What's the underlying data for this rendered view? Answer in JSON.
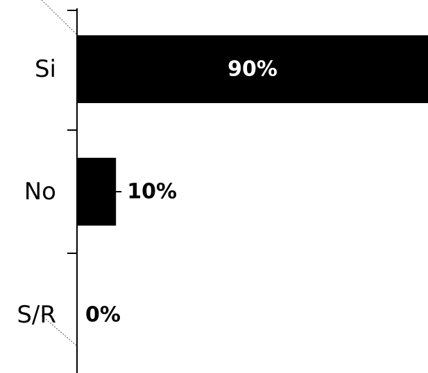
{
  "chart_data": {
    "type": "bar",
    "orientation": "horizontal",
    "categories": [
      "Si",
      "No",
      "S/R"
    ],
    "values": [
      90,
      10,
      0
    ],
    "data_labels": [
      "90%",
      "10%",
      "0%"
    ],
    "title": "",
    "xlabel": "",
    "ylabel": "",
    "xlim": [
      0,
      90
    ],
    "grid": false,
    "legend": "none",
    "colors": {
      "bar": "#000000",
      "label_inside": "#ffffff",
      "label_outside": "#000000",
      "axis": "#000000"
    }
  }
}
